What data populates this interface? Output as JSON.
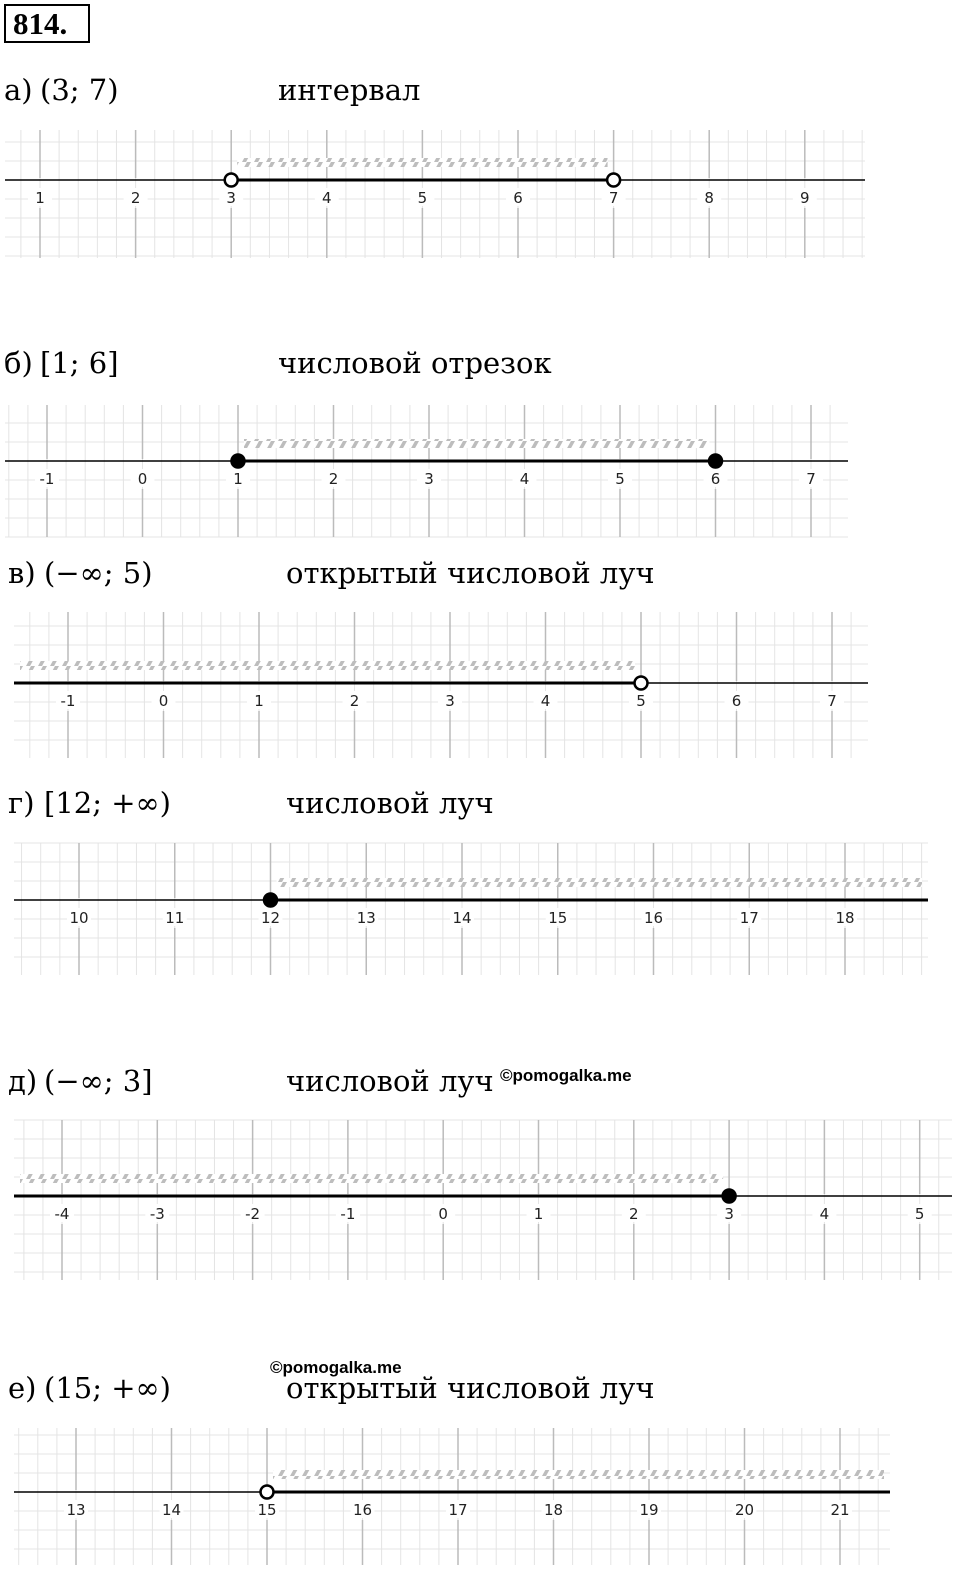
{
  "problem": "814.",
  "watermarks": [
    "©pomogalka.me",
    "©pomogalka.me"
  ],
  "items": [
    {
      "letter": "а)",
      "interval": "(3; 7)",
      "name": "интервал",
      "ticks": [
        1,
        2,
        3,
        4,
        5,
        6,
        7,
        8,
        9
      ],
      "start": 3,
      "end": 7,
      "start_open": true,
      "end_open": true
    },
    {
      "letter": "б)",
      "interval": "[1; 6]",
      "name": "числовой отрезок",
      "ticks": [
        -1,
        0,
        1,
        2,
        3,
        4,
        5,
        6,
        7
      ],
      "start": 1,
      "end": 6,
      "start_open": false,
      "end_open": false
    },
    {
      "letter": "в)",
      "interval": "(−∞; 5)",
      "name": "открытый числовой луч",
      "ticks": [
        -1,
        0,
        1,
        2,
        3,
        4,
        5,
        6,
        7
      ],
      "start": null,
      "end": 5,
      "end_open": true
    },
    {
      "letter": "г)",
      "interval": "[12; +∞)",
      "name": "числовой луч",
      "ticks": [
        10,
        11,
        12,
        13,
        14,
        15,
        16,
        17,
        18
      ],
      "start": 12,
      "end": null,
      "start_open": false
    },
    {
      "letter": "д)",
      "interval": "(−∞; 3]",
      "name": "числовой луч",
      "ticks": [
        -4,
        -3,
        -2,
        -1,
        0,
        1,
        2,
        3,
        4,
        5
      ],
      "start": null,
      "end": 3,
      "end_open": false
    },
    {
      "letter": "е)",
      "interval": "(15; +∞)",
      "name": "открытый числовой луч",
      "ticks": [
        13,
        14,
        15,
        16,
        17,
        18,
        19,
        20,
        21
      ],
      "start": 15,
      "end": null,
      "start_open": true
    }
  ]
}
